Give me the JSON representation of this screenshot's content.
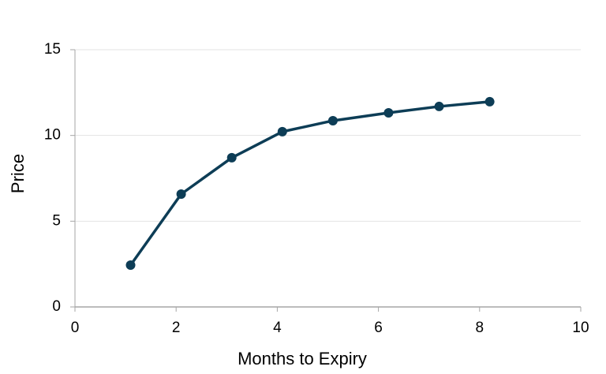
{
  "chart_data": {
    "type": "line",
    "x_label": "Months to Expiry",
    "y_label": "Price",
    "series": [
      {
        "name": "Price",
        "color": "#0d3d56",
        "x": [
          1.1,
          2.1,
          3.1,
          4.1,
          5.1,
          6.2,
          7.2,
          8.2
        ],
        "values": [
          2.44,
          6.58,
          8.7,
          10.22,
          10.86,
          11.32,
          11.69,
          11.97
        ]
      }
    ],
    "xlim": [
      0,
      10
    ],
    "xticks": [
      0,
      2,
      4,
      6,
      8,
      10
    ],
    "ylim": [
      0,
      15
    ],
    "yticks": [
      0,
      5,
      10,
      15
    ],
    "grid": true
  }
}
